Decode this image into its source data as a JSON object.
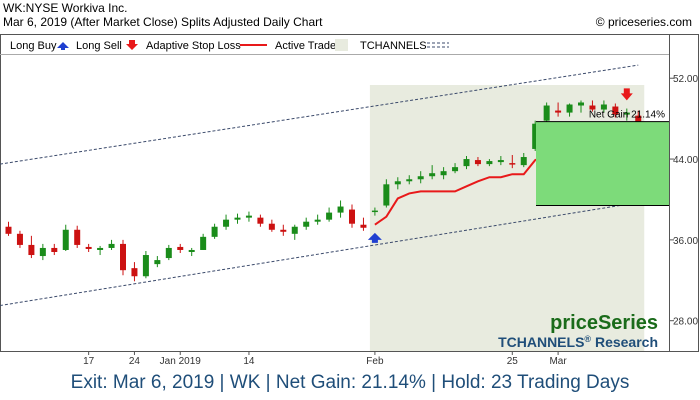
{
  "header": {
    "line1": "WK:NYSE Workiva Inc.",
    "line2": "Mar 6, 2019 (After Market Close)  Splits Adjusted Daily Chart",
    "copyright": "© priceseries.com"
  },
  "legend": {
    "long_buy": "Long Buy",
    "long_sell": "Long Sell",
    "adaptive_stop": "Adaptive Stop Loss",
    "active_trade": "Active Trade",
    "tchannels": "TCHANNELS"
  },
  "branding": {
    "logo": "priceSeries",
    "research_name": "TCHANNELS",
    "research_mark": "®",
    "research_suffix": " Research"
  },
  "footer": "Exit: Mar 6, 2019 | WK | Net Gain: 21.14% | Hold: 23 Trading Days",
  "chart_data": {
    "type": "candlestick",
    "y_ticks": [
      28,
      36,
      44,
      52
    ],
    "y_tick_labels": [
      "28.00",
      "36.00",
      "44.00",
      "52.00"
    ],
    "ylim": [
      25.0,
      54.3
    ],
    "x_ticks": [
      {
        "i": 7,
        "label": "17"
      },
      {
        "i": 11,
        "label": "24"
      },
      {
        "i": 15,
        "label": "Jan 2019"
      },
      {
        "i": 21,
        "label": "14"
      },
      {
        "i": 32,
        "label": "Feb"
      },
      {
        "i": 44,
        "label": "25"
      },
      {
        "i": 48,
        "label": "Mar"
      }
    ],
    "candles": [
      {
        "o": 37.3,
        "h": 37.8,
        "l": 36.4,
        "c": 36.6
      },
      {
        "o": 36.6,
        "h": 36.9,
        "l": 35.2,
        "c": 35.5
      },
      {
        "o": 35.5,
        "h": 36.4,
        "l": 34.2,
        "c": 34.5
      },
      {
        "o": 34.4,
        "h": 35.6,
        "l": 34.0,
        "c": 35.2
      },
      {
        "o": 35.2,
        "h": 35.6,
        "l": 34.5,
        "c": 34.8
      },
      {
        "o": 35.0,
        "h": 37.5,
        "l": 34.9,
        "c": 37.0
      },
      {
        "o": 37.0,
        "h": 37.4,
        "l": 35.2,
        "c": 35.5
      },
      {
        "o": 35.3,
        "h": 35.6,
        "l": 34.8,
        "c": 35.1
      },
      {
        "o": 35.0,
        "h": 35.4,
        "l": 34.5,
        "c": 35.2
      },
      {
        "o": 35.2,
        "h": 36.0,
        "l": 35.0,
        "c": 35.6
      },
      {
        "o": 35.6,
        "h": 36.0,
        "l": 32.5,
        "c": 33.0
      },
      {
        "o": 33.2,
        "h": 33.8,
        "l": 31.9,
        "c": 32.4
      },
      {
        "o": 32.4,
        "h": 34.9,
        "l": 32.2,
        "c": 34.5
      },
      {
        "o": 33.6,
        "h": 34.4,
        "l": 33.3,
        "c": 34.0
      },
      {
        "o": 34.2,
        "h": 35.5,
        "l": 34.0,
        "c": 35.2
      },
      {
        "o": 35.3,
        "h": 35.6,
        "l": 34.7,
        "c": 35.0
      },
      {
        "o": 34.8,
        "h": 35.2,
        "l": 34.4,
        "c": 35.0
      },
      {
        "o": 35.0,
        "h": 36.6,
        "l": 35.0,
        "c": 36.3
      },
      {
        "o": 36.3,
        "h": 37.6,
        "l": 36.1,
        "c": 37.3
      },
      {
        "o": 37.3,
        "h": 38.5,
        "l": 37.0,
        "c": 38.0
      },
      {
        "o": 38.0,
        "h": 38.6,
        "l": 37.6,
        "c": 38.2
      },
      {
        "o": 38.2,
        "h": 38.8,
        "l": 37.8,
        "c": 38.4
      },
      {
        "o": 38.2,
        "h": 38.5,
        "l": 37.3,
        "c": 37.6
      },
      {
        "o": 37.6,
        "h": 38.0,
        "l": 36.8,
        "c": 37.0
      },
      {
        "o": 37.0,
        "h": 37.5,
        "l": 36.4,
        "c": 36.8
      },
      {
        "o": 36.6,
        "h": 37.5,
        "l": 36.0,
        "c": 37.3
      },
      {
        "o": 37.3,
        "h": 38.2,
        "l": 37.0,
        "c": 37.8
      },
      {
        "o": 37.8,
        "h": 38.5,
        "l": 37.5,
        "c": 38.0
      },
      {
        "o": 38.0,
        "h": 39.2,
        "l": 37.8,
        "c": 38.7
      },
      {
        "o": 38.7,
        "h": 39.9,
        "l": 38.2,
        "c": 39.3
      },
      {
        "o": 39.0,
        "h": 39.5,
        "l": 37.2,
        "c": 37.6
      },
      {
        "o": 37.5,
        "h": 38.2,
        "l": 36.9,
        "c": 37.2
      },
      {
        "o": 38.8,
        "h": 39.2,
        "l": 38.4,
        "c": 38.9
      },
      {
        "o": 39.4,
        "h": 42.0,
        "l": 39.2,
        "c": 41.5
      },
      {
        "o": 41.5,
        "h": 42.2,
        "l": 41.0,
        "c": 41.8
      },
      {
        "o": 41.8,
        "h": 42.4,
        "l": 41.5,
        "c": 42.0
      },
      {
        "o": 42.0,
        "h": 42.8,
        "l": 41.6,
        "c": 42.3
      },
      {
        "o": 42.3,
        "h": 43.4,
        "l": 42.0,
        "c": 42.6
      },
      {
        "o": 42.4,
        "h": 43.2,
        "l": 42.0,
        "c": 42.8
      },
      {
        "o": 42.8,
        "h": 43.6,
        "l": 42.6,
        "c": 43.2
      },
      {
        "o": 43.3,
        "h": 44.3,
        "l": 43.0,
        "c": 44.0
      },
      {
        "o": 43.9,
        "h": 44.2,
        "l": 43.3,
        "c": 43.5
      },
      {
        "o": 43.5,
        "h": 44.0,
        "l": 43.3,
        "c": 43.8
      },
      {
        "o": 43.7,
        "h": 44.3,
        "l": 43.4,
        "c": 43.9
      },
      {
        "o": 43.6,
        "h": 44.4,
        "l": 43.1,
        "c": 43.5
      },
      {
        "o": 43.4,
        "h": 44.6,
        "l": 43.2,
        "c": 44.2
      },
      {
        "o": 45.0,
        "h": 47.8,
        "l": 44.8,
        "c": 47.5
      },
      {
        "o": 47.8,
        "h": 49.6,
        "l": 47.5,
        "c": 49.3
      },
      {
        "o": 48.8,
        "h": 49.6,
        "l": 48.2,
        "c": 48.6
      },
      {
        "o": 48.6,
        "h": 49.5,
        "l": 48.2,
        "c": 49.4
      },
      {
        "o": 49.3,
        "h": 49.8,
        "l": 48.6,
        "c": 49.6
      },
      {
        "o": 49.3,
        "h": 49.8,
        "l": 48.7,
        "c": 48.9
      },
      {
        "o": 48.9,
        "h": 49.8,
        "l": 48.6,
        "c": 49.4
      },
      {
        "o": 49.2,
        "h": 49.5,
        "l": 48.1,
        "c": 48.4
      },
      {
        "o": 48.4,
        "h": 49.0,
        "l": 47.8,
        "c": 48.6
      },
      {
        "o": 48.3,
        "h": 48.8,
        "l": 47.3,
        "c": 47.6
      }
    ],
    "stop_loss": [
      {
        "i": 32,
        "v": 37.5
      },
      {
        "i": 33,
        "v": 38.3
      },
      {
        "i": 34,
        "v": 40.1
      },
      {
        "i": 35,
        "v": 40.6
      },
      {
        "i": 36,
        "v": 40.8
      },
      {
        "i": 37,
        "v": 40.8
      },
      {
        "i": 38,
        "v": 40.8
      },
      {
        "i": 39,
        "v": 40.8
      },
      {
        "i": 40,
        "v": 41.3
      },
      {
        "i": 41,
        "v": 41.8
      },
      {
        "i": 42,
        "v": 42.2
      },
      {
        "i": 43,
        "v": 42.2
      },
      {
        "i": 44,
        "v": 42.5
      },
      {
        "i": 45,
        "v": 42.5
      },
      {
        "i": 46,
        "v": 43.9
      },
      {
        "i": 47,
        "v": 44.3
      },
      {
        "i": 48,
        "v": 44.3
      },
      {
        "i": 49,
        "v": 45.5
      },
      {
        "i": 50,
        "v": 46.1
      },
      {
        "i": 51,
        "v": 47.0
      },
      {
        "i": 52,
        "v": 47.1
      },
      {
        "i": 53,
        "v": 47.1
      },
      {
        "i": 54,
        "v": 47.2
      },
      {
        "i": 55,
        "v": 47.2
      }
    ],
    "active_trade_range": [
      32,
      55
    ],
    "channel": {
      "upper": [
        {
          "i": 0,
          "v": 43.5
        },
        {
          "i": 55,
          "v": 53.3
        }
      ],
      "lower": [
        {
          "i": 0,
          "v": 29.5
        },
        {
          "i": 55,
          "v": 39.7
        }
      ]
    },
    "buy_signal": {
      "i": 32,
      "v": 36.2
    },
    "sell_signal": {
      "i": 54,
      "v": 50.3
    },
    "net_gain": {
      "label": "Net Gain 21.14%",
      "entry": 39.4,
      "exit": 47.7
    },
    "colors": {
      "up": "#1a8c1a",
      "down": "#cc1111",
      "stop": "#e8191a",
      "active": "#e8ebdf",
      "channel": "#3b4a6b",
      "gain": "#7ddb7a",
      "buy": "#1f3fd0",
      "sell": "#e8191a"
    }
  }
}
